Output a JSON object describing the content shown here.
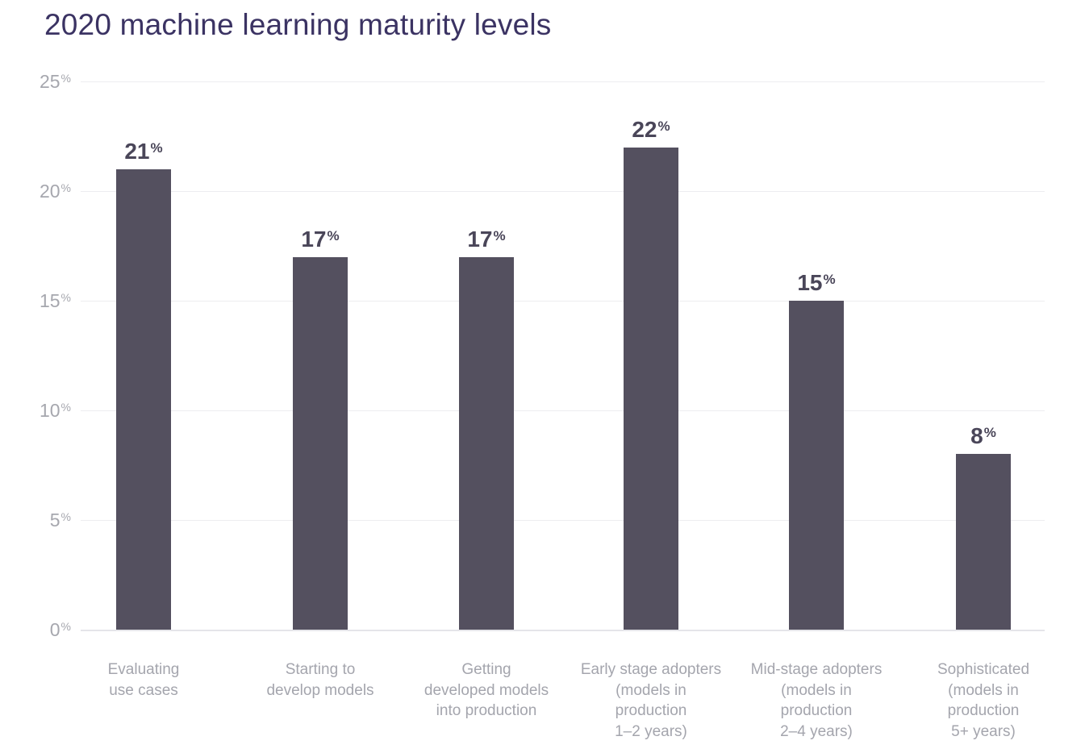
{
  "chart_data": {
    "type": "bar",
    "title": "2020 machine learning maturity levels",
    "categories": [
      "Evaluating use cases",
      "Starting to develop models",
      "Getting developed models into production",
      "Early stage adopters (models in production 1–2 years)",
      "Mid-stage adopters (models in production 2–4 years)",
      "Sophisticated (models in production 5+ years)"
    ],
    "category_lines": [
      [
        "Evaluating",
        "use cases"
      ],
      [
        "Starting to",
        "develop models"
      ],
      [
        "Getting",
        "developed models",
        "into production"
      ],
      [
        "Early stage adopters",
        "(models in",
        "production",
        "1–2 years)"
      ],
      [
        "Mid-stage adopters",
        "(models in",
        "production",
        "2–4 years)"
      ],
      [
        "Sophisticated",
        "(models in",
        "production",
        "5+ years)"
      ]
    ],
    "values": [
      21,
      17,
      17,
      22,
      15,
      8
    ],
    "value_labels": [
      "21%",
      "17%",
      "17%",
      "22%",
      "15%",
      "8%"
    ],
    "xlabel": "",
    "ylabel": "",
    "ylim": [
      0,
      25
    ],
    "yticks": [
      0,
      5,
      10,
      15,
      20,
      25
    ],
    "ytick_labels": [
      "0%",
      "5%",
      "10%",
      "15%",
      "20%",
      "25%"
    ],
    "grid": true,
    "legend": false
  },
  "colors": {
    "background": "#ffffff",
    "bar": "#54505f",
    "title": "#3b3363",
    "axis_label": "#a6a7ae",
    "category_label": "#a4a5ad",
    "value_label": "#4a4659",
    "gridline": "#ededf0",
    "baseline": "#e5e5e9"
  }
}
